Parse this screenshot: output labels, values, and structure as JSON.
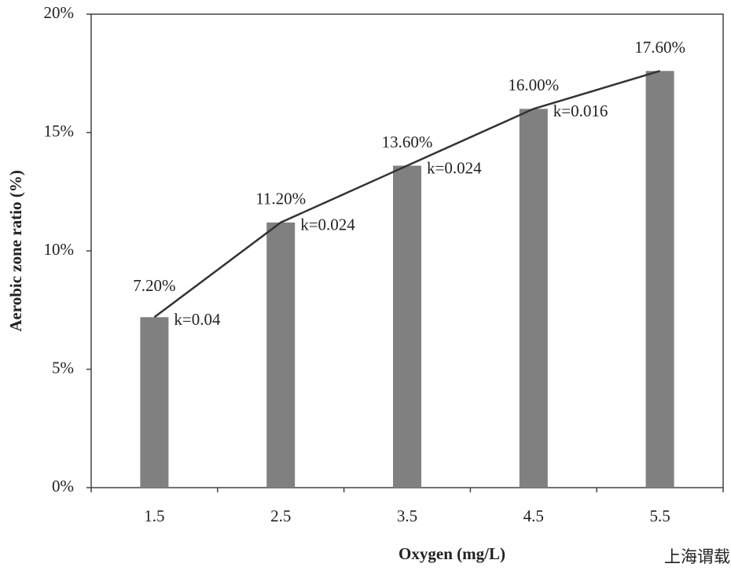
{
  "chart_data": {
    "type": "bar",
    "x_label": "Oxygen (mg/L)",
    "y_label": "Aerobic zone ratio (%)",
    "categories": [
      "1.5",
      "2.5",
      "3.5",
      "4.5",
      "5.5"
    ],
    "values": [
      7.2,
      11.2,
      13.6,
      16.0,
      17.6
    ],
    "value_labels": [
      "7.20%",
      "11.20%",
      "13.60%",
      "16.00%",
      "17.60%"
    ],
    "color": "#808080",
    "line": true,
    "line_color": "#333333",
    "annotations": [
      "k=0.04",
      "k=0.024",
      "k=0.024",
      "k=0.016"
    ],
    "ylim": [
      0,
      20
    ],
    "yticks": [
      {
        "value": 0,
        "label": "0%"
      },
      {
        "value": 5,
        "label": "5%"
      },
      {
        "value": 10,
        "label": "10%"
      },
      {
        "value": 15,
        "label": "15%"
      },
      {
        "value": 20,
        "label": "20%"
      }
    ],
    "grid": false,
    "watermark": "上海谓载"
  }
}
